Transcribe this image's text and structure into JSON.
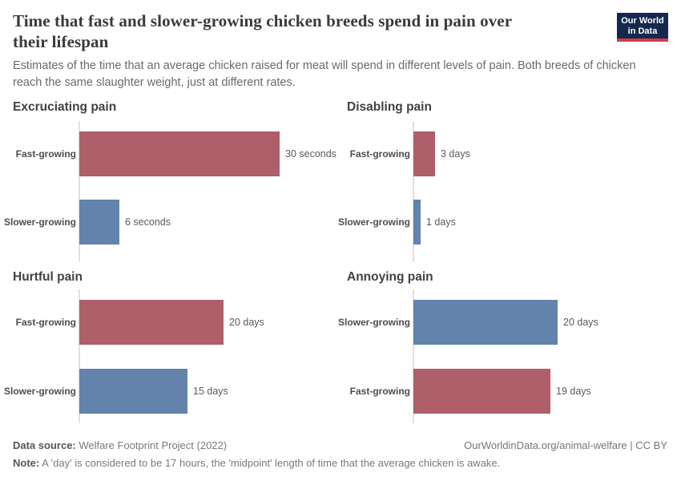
{
  "header": {
    "title_lines": [
      "Time that fast and slower-growing chicken breeds spend in pain over",
      "their lifespan"
    ],
    "subtitle_lines": [
      "Estimates of the time that an average chicken raised for meat will spend in different levels of pain. Both breeds of chicken",
      "reach the same slaughter weight, just at different rates."
    ],
    "logo_lines": [
      "Our World",
      "in Data"
    ]
  },
  "colors": {
    "fast_growing_bar": "#ae5f6a",
    "slower_growing_bar": "#6383ad",
    "axis_line": "#e0e0e0",
    "logo_navy": "#14294d",
    "logo_red": "#d13c4e"
  },
  "chart_data": [
    {
      "type": "bar",
      "title": "Excruciating pain",
      "orientation": "horizontal",
      "unit": "seconds",
      "xlim": [
        0,
        30
      ],
      "grid": false,
      "rows": [
        {
          "label": "Fast-growing",
          "value": 30,
          "value_label": "30 seconds",
          "color": "#ae5f6a"
        },
        {
          "label": "Slower-growing",
          "value": 6,
          "value_label": "6 seconds",
          "color": "#6383ad"
        }
      ]
    },
    {
      "type": "bar",
      "title": "Disabling pain",
      "orientation": "horizontal",
      "unit": "days",
      "xlim": [
        0,
        20
      ],
      "grid": false,
      "rows": [
        {
          "label": "Fast-growing",
          "value": 3,
          "value_label": "3 days",
          "color": "#ae5f6a"
        },
        {
          "label": "Slower-growing",
          "value": 1,
          "value_label": "1 days",
          "color": "#6383ad"
        }
      ]
    },
    {
      "type": "bar",
      "title": "Hurtful pain",
      "orientation": "horizontal",
      "unit": "days",
      "xlim": [
        0,
        20
      ],
      "grid": false,
      "rows": [
        {
          "label": "Fast-growing",
          "value": 20,
          "value_label": "20 days",
          "color": "#ae5f6a"
        },
        {
          "label": "Slower-growing",
          "value": 15,
          "value_label": "15 days",
          "color": "#6383ad"
        }
      ]
    },
    {
      "type": "bar",
      "title": "Annoying pain",
      "orientation": "horizontal",
      "unit": "days",
      "xlim": [
        0,
        20
      ],
      "grid": false,
      "rows": [
        {
          "label": "Slower-growing",
          "value": 20,
          "value_label": "20 days",
          "color": "#6383ad"
        },
        {
          "label": "Fast-growing",
          "value": 19,
          "value_label": "19 days",
          "color": "#ae5f6a"
        }
      ]
    }
  ],
  "footer": {
    "source_label": "Data source:",
    "source_text": " Welfare Footprint Project (2022)",
    "attribution": "OurWorldinData.org/animal-welfare | CC BY",
    "note_label": "Note:",
    "note_text": " A 'day' is considered to be 17 hours, the 'midpoint' length of time that the average chicken is awake."
  }
}
